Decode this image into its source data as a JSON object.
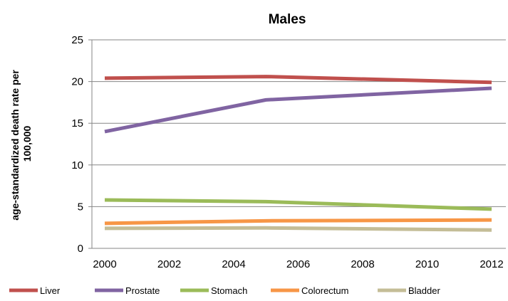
{
  "chart_data": {
    "type": "line",
    "title": "Males",
    "ylabel_lines": [
      "age-standardized death rate per",
      "100,000"
    ],
    "xlabel": "",
    "ylim": [
      0,
      25
    ],
    "yticks": [
      0,
      5,
      10,
      15,
      20,
      25
    ],
    "xlim": [
      2000,
      2012
    ],
    "xticks": [
      2000,
      2002,
      2004,
      2006,
      2008,
      2010,
      2012
    ],
    "grid": "horizontal",
    "legend_position": "bottom",
    "series": [
      {
        "name": "Liver",
        "color": "#c0504d",
        "x": [
          2000,
          2005,
          2012
        ],
        "values": [
          20.4,
          20.6,
          19.9
        ]
      },
      {
        "name": "Prostate",
        "color": "#8064a2",
        "x": [
          2000,
          2005,
          2012
        ],
        "values": [
          14.0,
          17.8,
          19.2
        ]
      },
      {
        "name": "Stomach",
        "color": "#9bbb59",
        "x": [
          2000,
          2005,
          2012
        ],
        "values": [
          5.8,
          5.6,
          4.7
        ]
      },
      {
        "name": "Colorectum",
        "color": "#f79646",
        "x": [
          2000,
          2005,
          2012
        ],
        "values": [
          3.0,
          3.3,
          3.4
        ]
      },
      {
        "name": "Bladder",
        "color": "#c4bd97",
        "x": [
          2000,
          2005,
          2012
        ],
        "values": [
          2.4,
          2.45,
          2.2
        ]
      }
    ]
  }
}
